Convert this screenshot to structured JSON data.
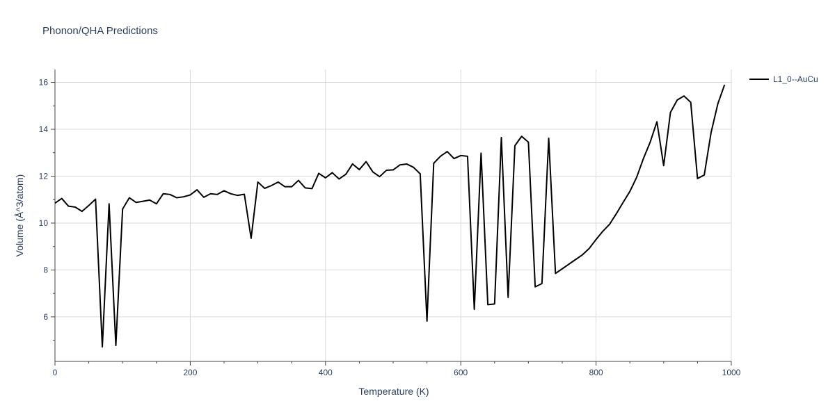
{
  "title": "Phonon/QHA Predictions",
  "colors": {
    "grid": "#d9d9d9",
    "axis": "#444444",
    "line": "#000000",
    "text": "#2a3f5f"
  },
  "chart_data": {
    "type": "line",
    "title": "Phonon/QHA Predictions",
    "xlabel": "Temperature (K)",
    "ylabel": "Volume (Å^3/atom)",
    "xlim": [
      0,
      1000
    ],
    "ylim": [
      4.1,
      16.55
    ],
    "xticks": [
      0,
      200,
      400,
      600,
      800,
      1000
    ],
    "yticks": [
      6,
      8,
      10,
      12,
      14,
      16
    ],
    "grid": true,
    "legend_position": "top-right",
    "series": [
      {
        "name": "L1_0--AuCu",
        "x": [
          0,
          10,
          20,
          30,
          40,
          50,
          60,
          70,
          80,
          90,
          100,
          110,
          120,
          130,
          140,
          150,
          160,
          170,
          180,
          190,
          200,
          210,
          220,
          230,
          240,
          250,
          260,
          270,
          280,
          290,
          300,
          310,
          320,
          330,
          340,
          350,
          360,
          370,
          380,
          390,
          400,
          410,
          420,
          430,
          440,
          450,
          460,
          470,
          480,
          490,
          500,
          510,
          520,
          530,
          540,
          550,
          560,
          570,
          580,
          590,
          600,
          610,
          620,
          630,
          640,
          650,
          660,
          670,
          680,
          690,
          700,
          710,
          720,
          730,
          740,
          750,
          760,
          770,
          780,
          790,
          800,
          810,
          820,
          830,
          840,
          850,
          860,
          870,
          880,
          890,
          900,
          910,
          920,
          930,
          940,
          950,
          960,
          970,
          980,
          990
        ],
        "y": [
          10.85,
          11.05,
          10.72,
          10.68,
          10.5,
          10.75,
          11.02,
          4.72,
          10.82,
          4.78,
          10.6,
          11.08,
          10.88,
          10.93,
          10.98,
          10.82,
          11.25,
          11.22,
          11.08,
          11.12,
          11.2,
          11.42,
          11.1,
          11.25,
          11.22,
          11.38,
          11.25,
          11.18,
          11.23,
          9.35,
          11.75,
          11.48,
          11.6,
          11.75,
          11.55,
          11.55,
          11.82,
          11.5,
          11.47,
          12.12,
          11.93,
          12.15,
          11.88,
          12.08,
          12.52,
          12.28,
          12.62,
          12.18,
          11.98,
          12.25,
          12.27,
          12.48,
          12.52,
          12.38,
          12.1,
          5.82,
          12.55,
          12.85,
          13.05,
          12.75,
          12.88,
          12.85,
          6.32,
          12.98,
          6.52,
          6.55,
          13.65,
          6.83,
          13.3,
          13.7,
          13.45,
          7.28,
          7.42,
          13.62,
          7.85,
          8.05,
          8.25,
          8.45,
          8.65,
          8.92,
          9.3,
          9.65,
          9.95,
          10.4,
          10.88,
          11.35,
          11.95,
          12.75,
          13.45,
          14.32,
          12.45,
          14.72,
          15.25,
          15.42,
          15.15,
          11.9,
          12.05,
          13.85,
          15.08,
          15.9
        ]
      }
    ]
  }
}
